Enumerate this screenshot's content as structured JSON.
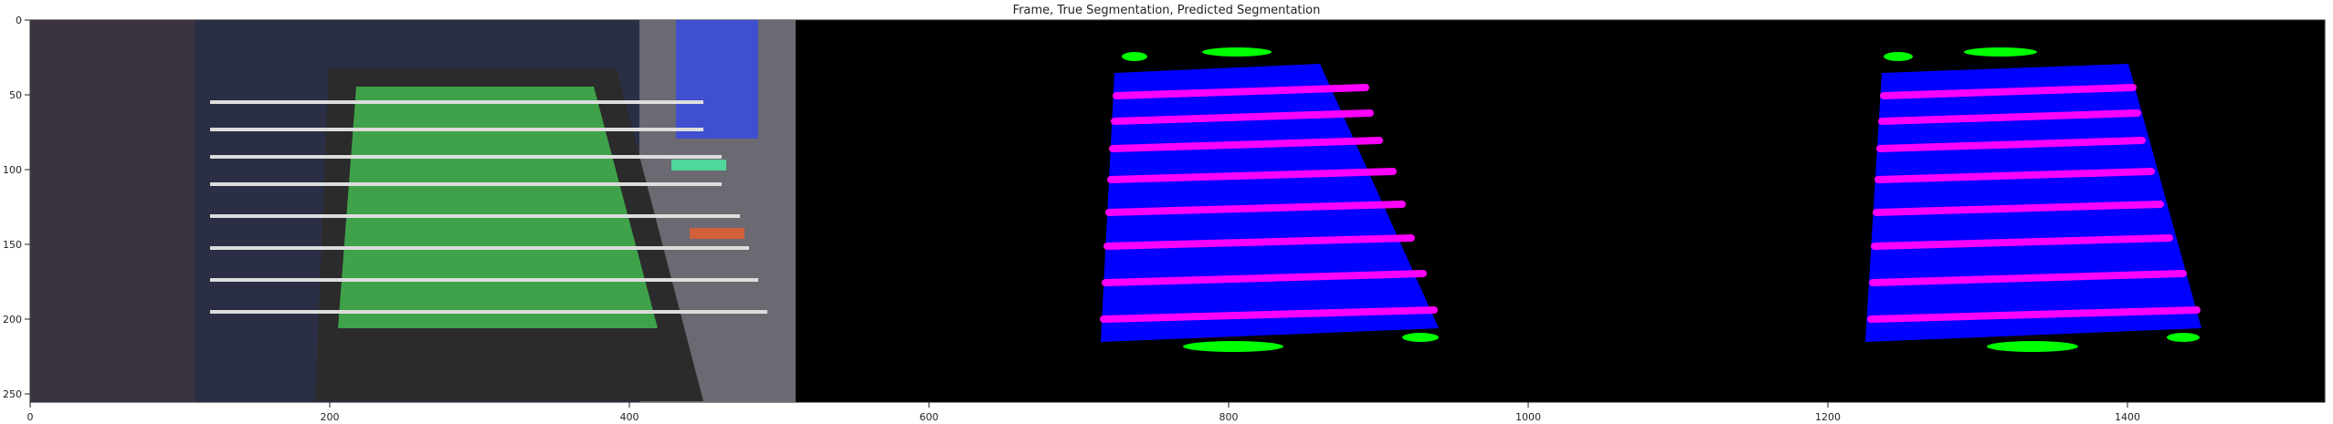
{
  "figure": {
    "title": "Frame, True Segmentation, Predicted Segmentation",
    "x_ticks": [
      "0",
      "200",
      "400",
      "600",
      "800",
      "1000",
      "1200",
      "1400"
    ],
    "y_ticks": [
      "0",
      "50",
      "100",
      "150",
      "200",
      "250"
    ]
  },
  "panels": [
    {
      "name": "frame",
      "description_color": "#2a2f45"
    },
    {
      "name": "true-segmentation"
    },
    {
      "name": "predicted-segmentation"
    }
  ],
  "colors": {
    "background": "#000000",
    "table_class": "#0000ff",
    "rod_class": "#ff00ff",
    "handle_class": "#00ff00",
    "frame_field": "#3fa24a"
  }
}
